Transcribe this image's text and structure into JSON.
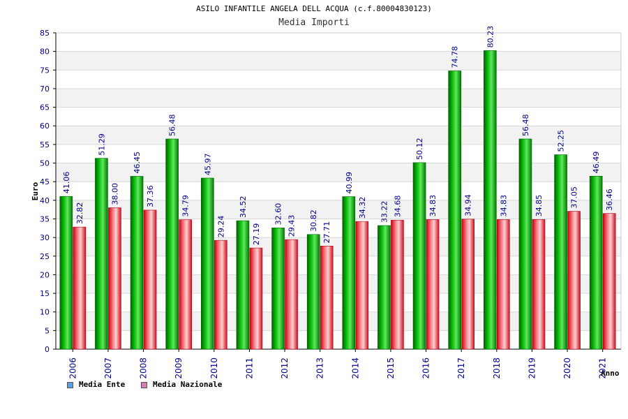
{
  "title": "ASILO INFANTILE ANGELA DELL ACQUA (c.f.80004830123)",
  "subtitle": "Media Importi",
  "legend": {
    "ente_label": "Media Ente",
    "nazionale_label": "Media Nazionale",
    "ente_color": "#5aa0e6",
    "nazionale_color": "#e07ab4"
  },
  "chart_data": {
    "type": "bar",
    "title": "ASILO INFANTILE ANGELA DELL ACQUA (c.f.80004830123)",
    "subtitle": "Media Importi",
    "xlabel": "Anno",
    "ylabel": "Euro",
    "ylim": [
      0,
      85
    ],
    "yticks": [
      0,
      5,
      10,
      15,
      20,
      25,
      30,
      35,
      40,
      45,
      50,
      55,
      60,
      65,
      70,
      75,
      80,
      85
    ],
    "categories": [
      "2006",
      "2007",
      "2008",
      "2009",
      "2010",
      "2011",
      "2012",
      "2013",
      "2014",
      "2015",
      "2016",
      "2017",
      "2018",
      "2019",
      "2020",
      "2021"
    ],
    "series": [
      {
        "name": "Media Ente",
        "color": "#00b400",
        "values": [
          41.06,
          51.29,
          46.45,
          56.48,
          45.97,
          34.52,
          32.6,
          30.82,
          40.99,
          33.22,
          50.12,
          74.78,
          80.23,
          56.48,
          52.25,
          46.49
        ]
      },
      {
        "name": "Media Nazionale",
        "color": "#e8202a",
        "values": [
          32.82,
          38.0,
          37.36,
          34.79,
          29.24,
          27.19,
          29.43,
          27.71,
          34.32,
          34.68,
          34.83,
          34.94,
          34.83,
          34.85,
          37.05,
          36.46
        ]
      }
    ],
    "data_labels": [
      [
        "41.06",
        "51.29",
        "46.45",
        "56.48",
        "45.97",
        "34.52",
        "32.60",
        "30.82",
        "40.99",
        "33.22",
        "50.12",
        "74.78",
        "80.23",
        "56.48",
        "52.25",
        "46.49"
      ],
      [
        "32.82",
        "38.00",
        "37.36",
        "34.79",
        "29.24",
        "27.19",
        "29.43",
        "27.71",
        "34.32",
        "34.68",
        "34.83",
        "34.94",
        "34.83",
        "34.85",
        "37.05",
        "36.46"
      ]
    ],
    "grid": true,
    "legend_position": "bottom-left"
  }
}
